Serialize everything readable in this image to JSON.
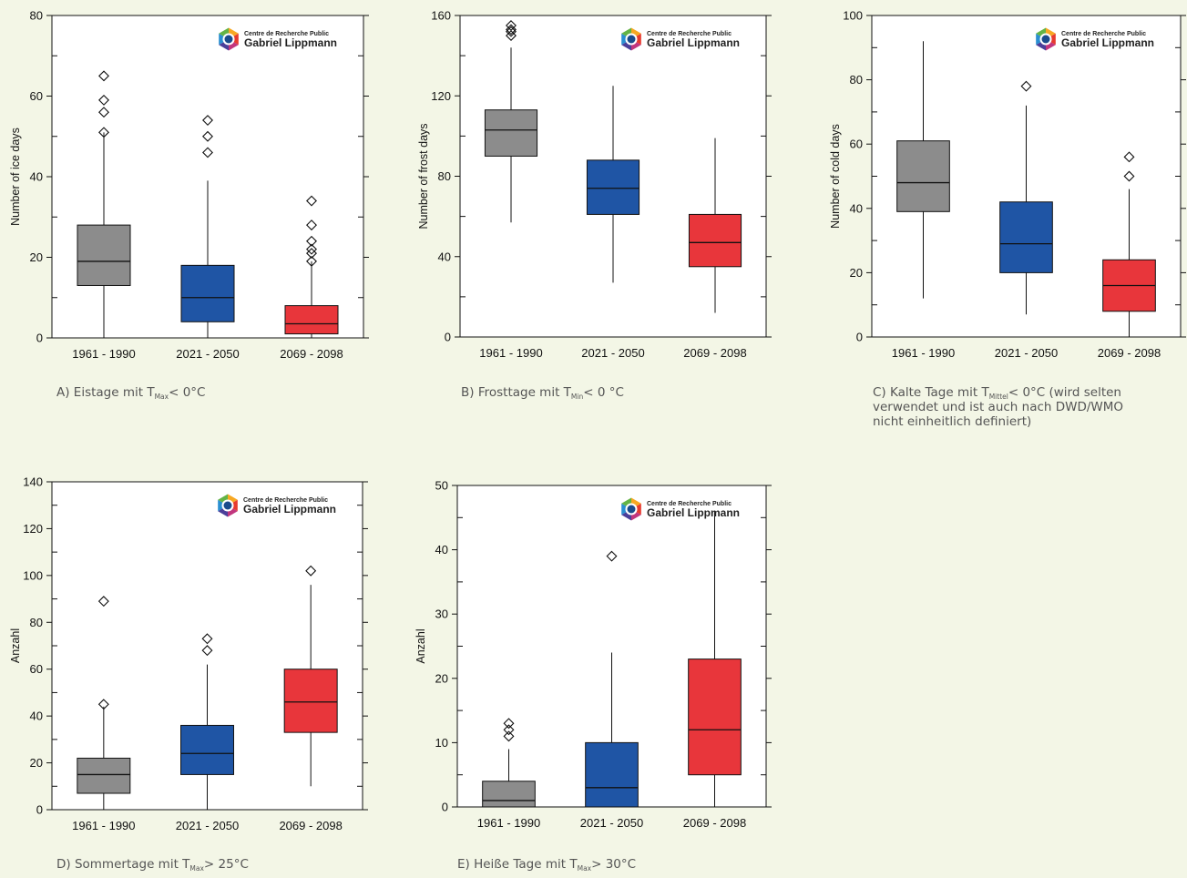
{
  "chart_data": [
    {
      "type": "boxplot",
      "panel": "A",
      "ylabel": "Number of ice days",
      "ylim": [
        0,
        80
      ],
      "yticks": [
        0,
        20,
        40,
        60,
        80
      ],
      "categories": [
        "1961 - 1990",
        "2021 - 2050",
        "2069 - 2098"
      ],
      "boxes": [
        {
          "whisker_low": 0,
          "q1": 13,
          "median": 19,
          "q3": 28,
          "whisker_high": 51,
          "outliers": [
            51,
            56,
            59,
            65
          ]
        },
        {
          "whisker_low": 0,
          "q1": 4,
          "median": 10,
          "q3": 18,
          "whisker_high": 39,
          "outliers": [
            46,
            50,
            54
          ]
        },
        {
          "whisker_low": 0,
          "q1": 1,
          "median": 3.5,
          "q3": 8,
          "whisker_high": 19,
          "outliers": [
            19,
            21,
            22,
            24,
            28,
            34
          ]
        }
      ],
      "caption": {
        "pre": "A) Eistage mit T",
        "sub": "Max",
        "post": "< 0°C"
      }
    },
    {
      "type": "boxplot",
      "panel": "B",
      "ylabel": "Number of frost days",
      "ylim": [
        0,
        160
      ],
      "yticks": [
        0,
        40,
        80,
        120,
        160
      ],
      "categories": [
        "1961 - 1990",
        "2021 - 2050",
        "2069 - 2098"
      ],
      "boxes": [
        {
          "whisker_low": 57,
          "q1": 90,
          "median": 103,
          "q3": 113,
          "whisker_high": 144,
          "outliers": [
            150,
            152,
            153,
            155
          ]
        },
        {
          "whisker_low": 27,
          "q1": 61,
          "median": 74,
          "q3": 88,
          "whisker_high": 125,
          "outliers": []
        },
        {
          "whisker_low": 12,
          "q1": 35,
          "median": 47,
          "q3": 61,
          "whisker_high": 99,
          "outliers": []
        }
      ],
      "caption": {
        "pre": "B) Frosttage mit T",
        "sub": "Min",
        "post": "< 0 °C"
      }
    },
    {
      "type": "boxplot",
      "panel": "C",
      "ylabel": "Number of cold days",
      "ylim": [
        0,
        100
      ],
      "yticks": [
        0,
        20,
        40,
        60,
        80,
        100
      ],
      "categories": [
        "1961 - 1990",
        "2021 - 2050",
        "2069 - 2098"
      ],
      "boxes": [
        {
          "whisker_low": 12,
          "q1": 39,
          "median": 48,
          "q3": 61,
          "whisker_high": 92,
          "outliers": []
        },
        {
          "whisker_low": 7,
          "q1": 20,
          "median": 29,
          "q3": 42,
          "whisker_high": 72,
          "outliers": [
            78
          ]
        },
        {
          "whisker_low": 0,
          "q1": 8,
          "median": 16,
          "q3": 24,
          "whisker_high": 46,
          "outliers": [
            50,
            56
          ]
        }
      ],
      "caption": {
        "pre": "C) Kalte Tage mit T",
        "sub": "Mittel",
        "post": "< 0°C (wird selten",
        "line2": "verwendet und ist auch nach DWD/WMO",
        "line3": "nicht einheitlich definiert)"
      }
    },
    {
      "type": "boxplot",
      "panel": "D",
      "ylabel": "Anzahl",
      "ylim": [
        0,
        140
      ],
      "yticks": [
        0,
        20,
        40,
        60,
        80,
        100,
        120,
        140
      ],
      "categories": [
        "1961 - 1990",
        "2021 - 2050",
        "2069 - 2098"
      ],
      "boxes": [
        {
          "whisker_low": 0,
          "q1": 7,
          "median": 15,
          "q3": 22,
          "whisker_high": 44,
          "outliers": [
            45,
            89
          ]
        },
        {
          "whisker_low": 0,
          "q1": 15,
          "median": 24,
          "q3": 36,
          "whisker_high": 62,
          "outliers": [
            68,
            73
          ]
        },
        {
          "whisker_low": 10,
          "q1": 33,
          "median": 46,
          "q3": 60,
          "whisker_high": 96,
          "outliers": [
            102
          ]
        }
      ],
      "caption": {
        "pre": "D) Sommertage mit T",
        "sub": "Max",
        "post": "> 25°C"
      }
    },
    {
      "type": "boxplot",
      "panel": "E",
      "ylabel": "Anzahl",
      "ylim": [
        0,
        50
      ],
      "yticks": [
        0,
        10,
        20,
        30,
        40,
        50
      ],
      "categories": [
        "1961 - 1990",
        "2021 - 2050",
        "2069 - 2098"
      ],
      "boxes": [
        {
          "whisker_low": 0,
          "q1": 0,
          "median": 1,
          "q3": 4,
          "whisker_high": 9,
          "outliers": [
            11,
            12,
            13
          ]
        },
        {
          "whisker_low": 0,
          "q1": 0,
          "median": 3,
          "q3": 10,
          "whisker_high": 24,
          "outliers": [
            39
          ]
        },
        {
          "whisker_low": 0,
          "q1": 5,
          "median": 12,
          "q3": 23,
          "whisker_high": 46,
          "outliers": []
        }
      ],
      "caption": {
        "pre": "E) Heiße Tage mit T",
        "sub": "Max",
        "post": "> 30°C"
      }
    }
  ],
  "logo": {
    "line1": "Centre de Recherche Public",
    "line2": "Gabriel Lippmann"
  },
  "colors": {
    "period_1961_1990": "#8c8c8c",
    "period_2021_2050": "#1f55a5",
    "period_2069_2098": "#e8363b"
  }
}
